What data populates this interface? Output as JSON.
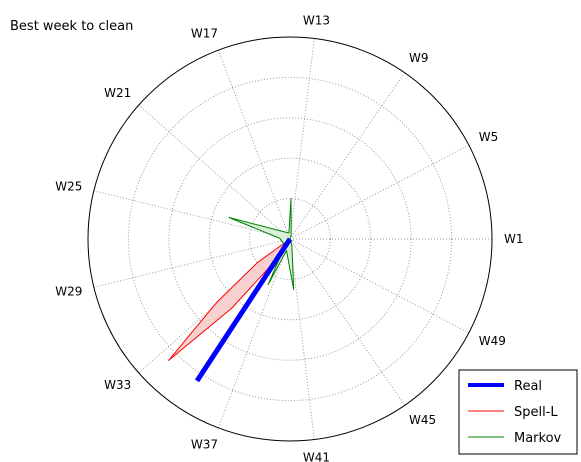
{
  "chart_data": {
    "type": "polar",
    "title": "Best week to clean",
    "tick_labels": [
      "W1",
      "W5",
      "W9",
      "W13",
      "W17",
      "W21",
      "W25",
      "W29",
      "W33",
      "W37",
      "W41",
      "W45",
      "W49"
    ],
    "tick_weeks": [
      1,
      5,
      9,
      13,
      17,
      21,
      25,
      29,
      33,
      37,
      41,
      45,
      49
    ],
    "weeks_per_cycle": 52,
    "radial_range": [
      0,
      1
    ],
    "radial_grid": [
      0.2,
      0.4,
      0.6,
      0.8
    ],
    "grid": true,
    "legend_position": "bottom-right",
    "series": [
      {
        "name": "Real",
        "color": "#0000ff",
        "style": "thick-line",
        "points": [
          [
            0,
            0
          ],
          [
            35.2,
            0.84
          ]
        ]
      },
      {
        "name": "Spell-L",
        "color": "#ff0000",
        "fill": "#f7c8c8",
        "style": "filled-polygon",
        "points": [
          [
            0,
            0
          ],
          [
            32.2,
            0.2
          ],
          [
            32.9,
            0.48
          ],
          [
            33.5,
            0.85
          ],
          [
            34.2,
            0.45
          ],
          [
            35.0,
            0.14
          ],
          [
            0,
            0
          ]
        ]
      },
      {
        "name": "Markov",
        "color": "#008000",
        "fill": "#d4ecd4",
        "style": "filled-polygon",
        "points": [
          [
            0,
            0
          ],
          [
            11.5,
            0.02
          ],
          [
            13.8,
            0.2
          ],
          [
            15.5,
            0.03
          ],
          [
            24.2,
            0.32
          ],
          [
            26.5,
            0.05
          ],
          [
            34.5,
            0.04
          ],
          [
            36.3,
            0.25
          ],
          [
            37.6,
            0.06
          ],
          [
            40.6,
            0.25
          ],
          [
            42.5,
            0.03
          ],
          [
            0,
            0
          ]
        ]
      }
    ]
  }
}
